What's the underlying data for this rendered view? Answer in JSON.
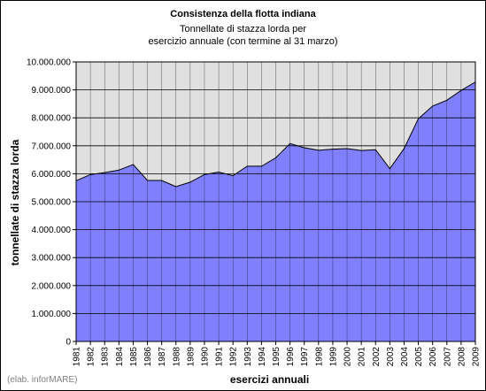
{
  "chart_data": {
    "type": "area",
    "title": "Consistenza della flotta indiana",
    "subtitle": [
      "Tonnellate di stazza lorda per",
      "esercizio annuale (con termine al 31 marzo)"
    ],
    "xlabel": "esercizi annuali",
    "ylabel": "tonnellate di stazza lorda",
    "ylim": [
      0,
      10000000
    ],
    "ytick_labels": [
      "0",
      "1.000.000",
      "2.000.000",
      "3.000.000",
      "4.000.000",
      "5.000.000",
      "6.000.000",
      "7.000.000",
      "8.000.000",
      "9.000.000",
      "10.000.000"
    ],
    "categories": [
      "1981",
      "1982",
      "1983",
      "1984",
      "1985",
      "1986",
      "1987",
      "1988",
      "1989",
      "1990",
      "1991",
      "1992",
      "1993",
      "1994",
      "1995",
      "1996",
      "1997",
      "1998",
      "1999",
      "2000",
      "2001",
      "2002",
      "2003",
      "2004",
      "2005",
      "2006",
      "2007",
      "2008",
      "2009"
    ],
    "values": [
      5750000,
      5970000,
      6040000,
      6130000,
      6330000,
      5760000,
      5760000,
      5540000,
      5700000,
      5970000,
      6060000,
      5930000,
      6270000,
      6270000,
      6570000,
      7080000,
      6930000,
      6840000,
      6880000,
      6900000,
      6830000,
      6860000,
      6180000,
      6900000,
      7970000,
      8420000,
      8630000,
      8980000,
      9280000
    ],
    "grid": "horizontal",
    "colors": {
      "area_fill": "#8080FF",
      "plot_background": "#E0E0E0",
      "gridline": "#000000"
    }
  },
  "credit": "(elab. inforMARE)"
}
